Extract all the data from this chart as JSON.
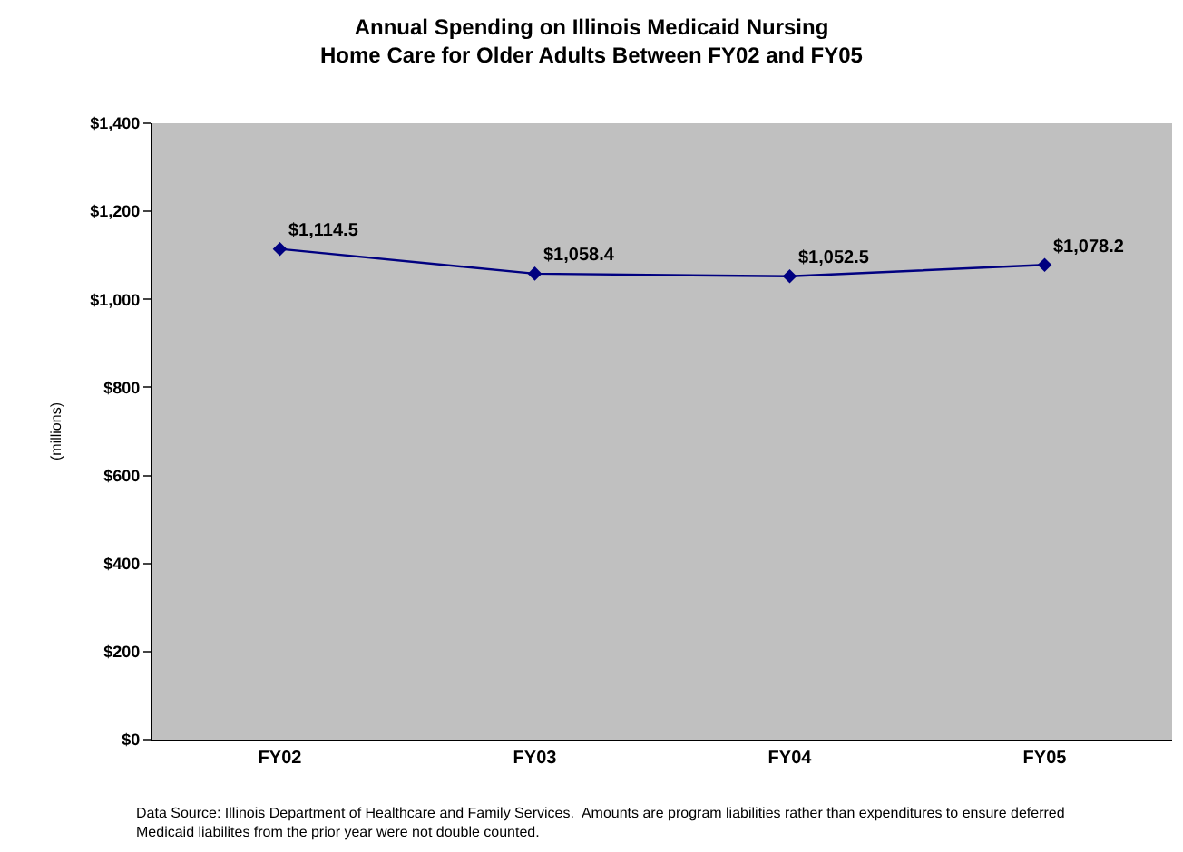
{
  "chart_data": {
    "type": "line",
    "title": "Annual Spending on Illinois Medicaid Nursing\nHome Care for Older Adults Between FY02 and FY05",
    "ylabel": "(millions)",
    "categories": [
      "FY02",
      "FY03",
      "FY04",
      "FY05"
    ],
    "series": [
      {
        "color": "#000080",
        "values": [
          1114.5,
          1058.4,
          1052.5,
          1078.2
        ],
        "value_labels": [
          "$1,114.5",
          "$1,058.4",
          "$1,052.5",
          "$1,078.2"
        ]
      }
    ],
    "ylim": [
      0,
      1400
    ],
    "yticks": [
      {
        "value": 0,
        "label": "$0"
      },
      {
        "value": 200,
        "label": "$200"
      },
      {
        "value": 400,
        "label": "$400"
      },
      {
        "value": 600,
        "label": "$600"
      },
      {
        "value": 800,
        "label": "$800"
      },
      {
        "value": 1000,
        "label": "$1,000"
      },
      {
        "value": 1200,
        "label": "$1,200"
      },
      {
        "value": 1400,
        "label": "$1,400"
      }
    ],
    "grid": false,
    "marker": "diamond",
    "line_style": "solid",
    "annotations": [
      "Data Source: Illinois Department of Healthcare and Family Services.  Amounts are program liabilities rather than expenditures to ensure deferred\nMedicaid liabilites from the prior year were not double counted."
    ]
  }
}
